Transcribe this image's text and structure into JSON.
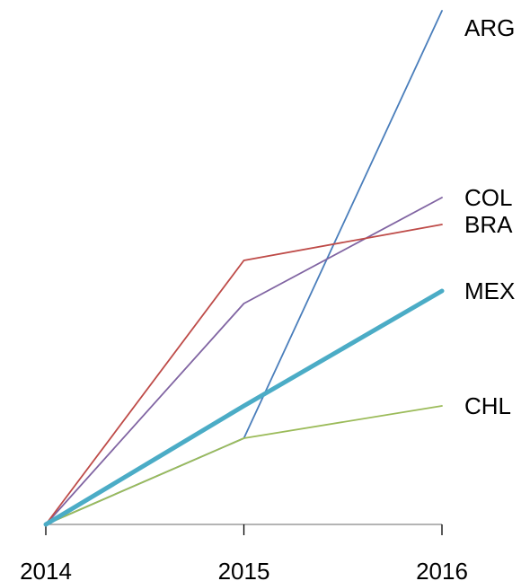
{
  "chart_data": {
    "type": "line",
    "x": [
      "2014",
      "2015",
      "2016"
    ],
    "series": [
      {
        "name": "ARG",
        "values": [
          0,
          0.24,
          1.43
        ],
        "color": "#4a7ebb",
        "emphasis": false
      },
      {
        "name": "COL",
        "values": [
          0,
          0.615,
          0.91
        ],
        "color": "#8064a2",
        "emphasis": false
      },
      {
        "name": "BRA",
        "values": [
          0,
          0.735,
          0.835
        ],
        "color": "#be4b48",
        "emphasis": false
      },
      {
        "name": "MEX",
        "values": [
          0,
          0.33,
          0.65
        ],
        "color": "#4bacc6",
        "emphasis": true
      },
      {
        "name": "CHL",
        "values": [
          0,
          0.24,
          0.33
        ],
        "color": "#9bbb59",
        "emphasis": false
      }
    ],
    "ylim": [
      0,
      1.43
    ],
    "grid": false,
    "legend": "direct labels at right end of each line",
    "title": "",
    "xlabel": "",
    "ylabel": ""
  }
}
